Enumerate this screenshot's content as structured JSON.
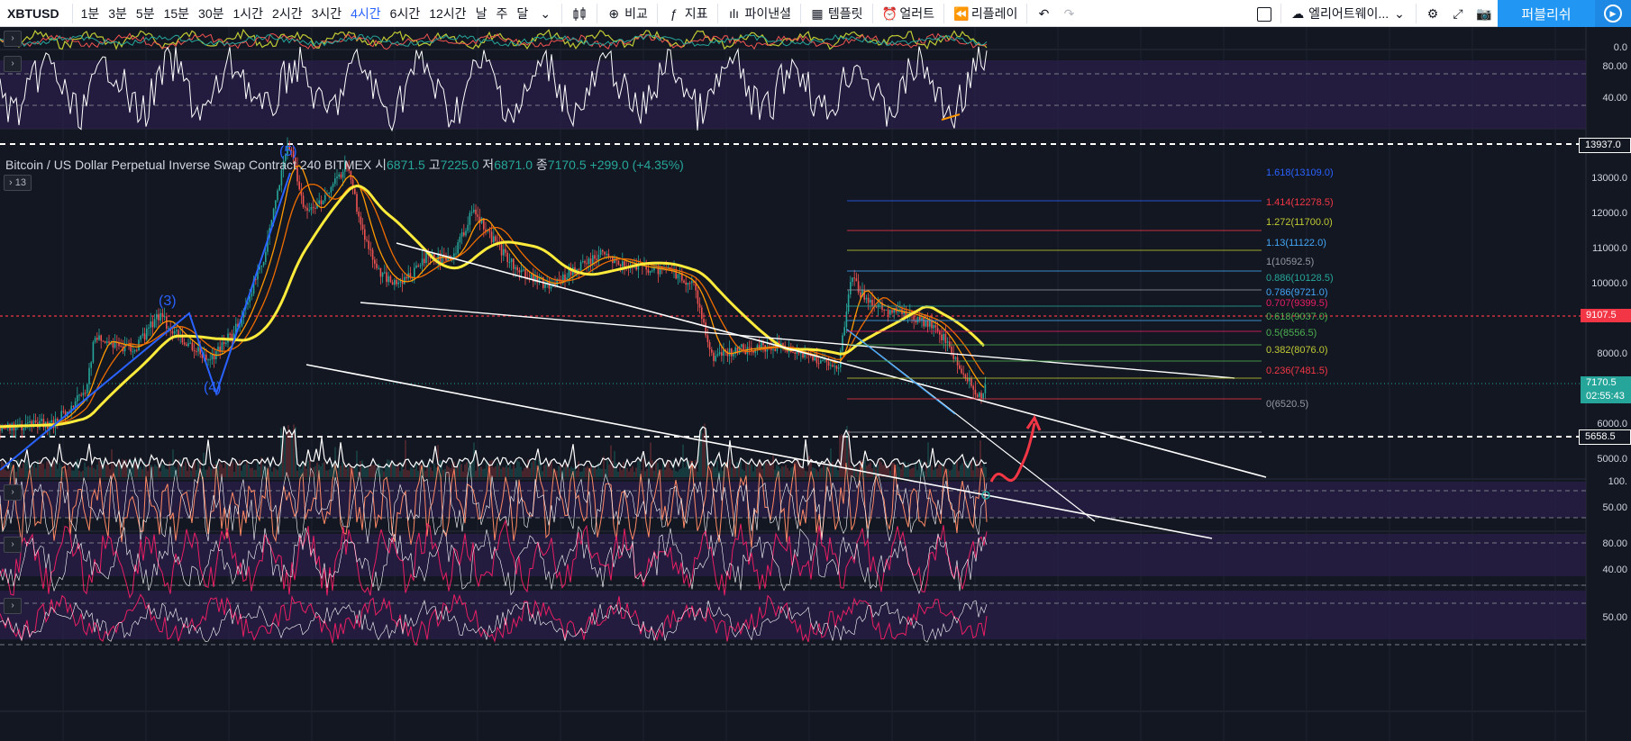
{
  "toolbar": {
    "symbol": "XBTUSD",
    "intervals": [
      "1분",
      "3분",
      "5분",
      "15분",
      "30분",
      "1시간",
      "2시간",
      "3시간",
      "4시간",
      "6시간",
      "12시간",
      "날",
      "주",
      "달"
    ],
    "active_interval": "4시간",
    "compare_label": "비교",
    "indicators_label": "지표",
    "financials_label": "파이낸셜",
    "templates_label": "템플릿",
    "alert_label": "얼러트",
    "replay_label": "리플레이",
    "layout_label": "엘리어트웨이...",
    "publish_label": "퍼블리쉬"
  },
  "legend": {
    "title": "Bitcoin / US Dollar Perpetual Inverse Swap Contract  240  BITMEX",
    "open_label": "시",
    "open": "6871.5",
    "high_label": "고",
    "high": "7225.0",
    "low_label": "저",
    "low": "6871.0",
    "close_label": "종",
    "close": "7170.5",
    "change": "+299.0 (+4.35%)",
    "collapsed_count": "13"
  },
  "price_axis": {
    "ticks": [
      "13000.0",
      "12000.0",
      "11000.0",
      "10000.0",
      "9000.0",
      "8000.0",
      "6000.0",
      "5000.0"
    ],
    "rsi_ticks": [
      "80.00",
      "40.00"
    ],
    "osc1_ticks": [
      "100.",
      "50.00"
    ],
    "osc2_ticks": [
      "80.00",
      "40.00"
    ],
    "osc3_ticks": [
      "50.00"
    ],
    "top_tick": "0.0",
    "tag_high": "13937.0",
    "tag_red": "9107.5",
    "tag_last": "7170.5",
    "tag_timer": "02:55:43",
    "tag_low": "5658.5"
  },
  "fib_levels": [
    {
      "ratio": "1.618",
      "value": "13109.0",
      "color": "#2962ff"
    },
    {
      "ratio": "1.414",
      "value": "12278.5",
      "color": "#f23645"
    },
    {
      "ratio": "1.272",
      "value": "11700.0",
      "color": "#c0ca33"
    },
    {
      "ratio": "1.13",
      "value": "11122.0",
      "color": "#42a5f5"
    },
    {
      "ratio": "1",
      "value": "10592.5",
      "color": "#9598a1"
    },
    {
      "ratio": "0.886",
      "value": "10128.5",
      "color": "#26a69a"
    },
    {
      "ratio": "0.786",
      "value": "9721.0",
      "color": "#42a5f5"
    },
    {
      "ratio": "0.707",
      "value": "9399.5",
      "color": "#e91e63"
    },
    {
      "ratio": "0.618",
      "value": "9037.0",
      "color": "#4caf50"
    },
    {
      "ratio": "0.5",
      "value": "8556.5",
      "color": "#4caf50"
    },
    {
      "ratio": "0.382",
      "value": "8076.0",
      "color": "#c0ca33"
    },
    {
      "ratio": "0.236",
      "value": "7481.5",
      "color": "#f23645"
    },
    {
      "ratio": "0",
      "value": "6520.5",
      "color": "#9598a1"
    }
  ],
  "waves": [
    "(3)",
    "(4)",
    "(5)"
  ],
  "colors": {
    "background": "#131722",
    "accent": "#2962ff",
    "up": "#26a69a",
    "down": "#ef5350",
    "sma": "#ffeb3b",
    "publish": "#2196f3"
  }
}
